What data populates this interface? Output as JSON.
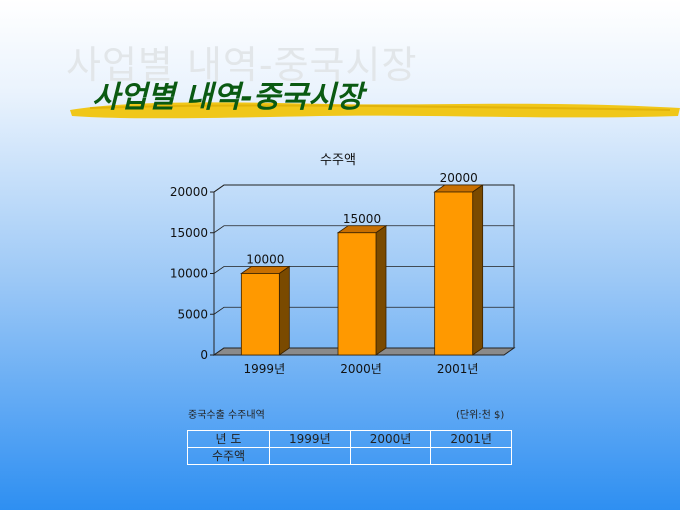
{
  "slide": {
    "title": "사업별 내역-중국시장"
  },
  "colors": {
    "bar_front": "#ff9900",
    "bar_side": "#7a4a00",
    "bar_top": "#c86f00",
    "title": "#0a5a12",
    "brush": "#f2c200"
  },
  "chart_data": {
    "type": "bar",
    "title": "수주액",
    "categories": [
      "1999년",
      "2000년",
      "2001년"
    ],
    "values": [
      10000,
      15000,
      20000
    ],
    "data_labels": [
      "10000",
      "15000",
      "20000"
    ],
    "y_ticks": [
      "0",
      "5000",
      "10000",
      "15000",
      "20000"
    ],
    "ylim": [
      0,
      20000
    ],
    "grid": true
  },
  "table": {
    "caption": "중국수출 수주내역",
    "unit": "(단위:천 $)",
    "header": [
      "년 도",
      "1999년",
      "2000년",
      "2001년"
    ],
    "row_label": "수주액",
    "row_values": [
      "",
      "",
      ""
    ]
  }
}
